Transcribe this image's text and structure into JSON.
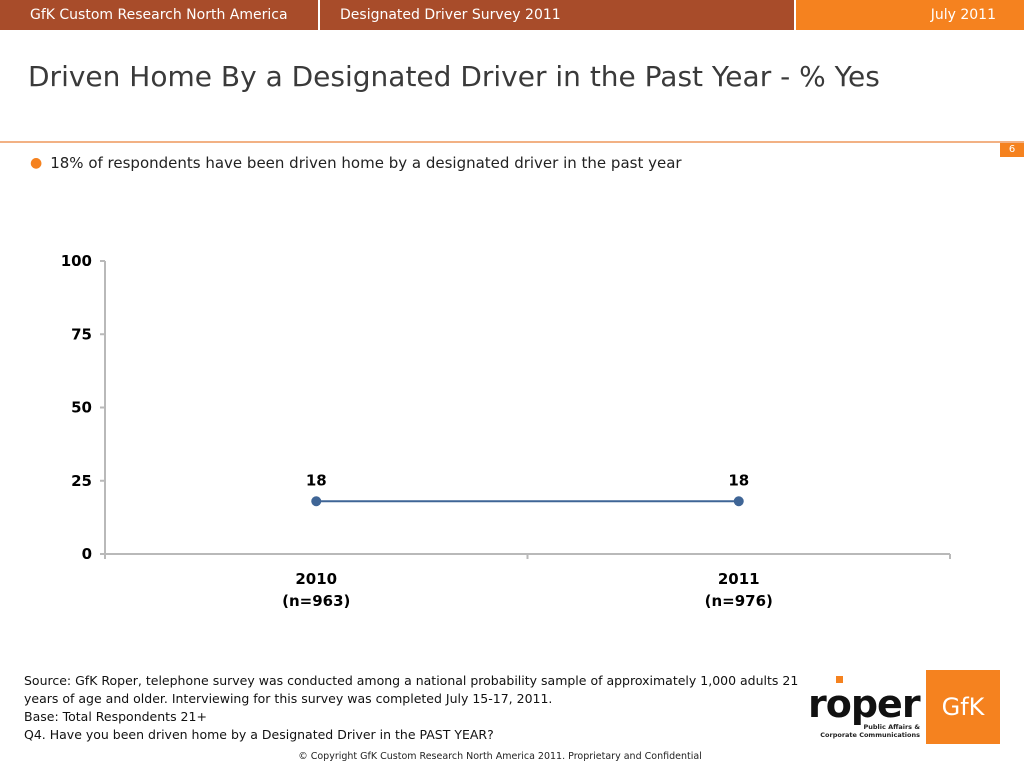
{
  "header": {
    "company": "GfK Custom Research North America",
    "survey": "Designated Driver Survey 2011",
    "date": "July 2011"
  },
  "slide": {
    "title": "Driven Home By a Designated Driver in the Past Year - % Yes",
    "page_number": "6",
    "bullet": "18% of respondents have been driven home by a designated driver in the past year"
  },
  "chart_data": {
    "type": "line",
    "categories": [
      "2010",
      "2011"
    ],
    "category_sublabels": [
      "(n=963)",
      "(n=976)"
    ],
    "series": [
      {
        "values": [
          18,
          18
        ]
      }
    ],
    "data_labels": [
      "18",
      "18"
    ],
    "y_ticks": [
      "0",
      "25",
      "50",
      "75",
      "100"
    ],
    "ylim": [
      0,
      100
    ],
    "grid": false,
    "legend": "none",
    "line_color": "#3f6596"
  },
  "footer": {
    "source": "Source: GfK Roper, telephone survey was conducted among a national probability sample of approximately 1,000 adults 21 years of age and older.  Interviewing for this survey was completed July 15-17, 2011.",
    "base": "Base: Total Respondents 21+",
    "question": "Q4. Have you been driven home by a Designated Driver in the PAST YEAR?",
    "copyright": "© Copyright GfK Custom Research North America 2011.  Proprietary and Confidential"
  },
  "logos": {
    "roper_wordmark": "roper",
    "roper_tagline_1": "Public Affairs &",
    "roper_tagline_2": "Corporate Communications",
    "gfk": "GfK"
  },
  "colors": {
    "header_dark": "#a84c2a",
    "accent_orange": "#f5821f"
  }
}
